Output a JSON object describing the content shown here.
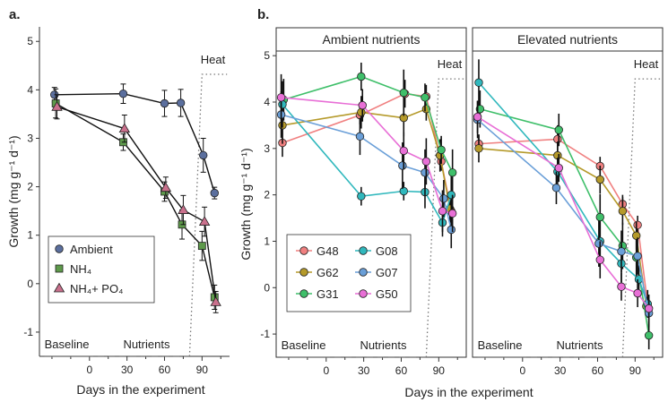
{
  "figure": {
    "x_axis_title": "Days in the experiment"
  },
  "chart_data": [
    {
      "type": "line",
      "panel_label": "a.",
      "ylabel": "Growth (mg g⁻¹ d⁻¹)",
      "xlabel": "Days in the experiment",
      "xlim": [
        -40,
        112
      ],
      "ylim": [
        -1.5,
        5.3
      ],
      "x_ticks": [
        0,
        30,
        60,
        90
      ],
      "y_ticks": [
        -1,
        0,
        1,
        2,
        3,
        4,
        5
      ],
      "grid": false,
      "legend_position": "bottom-left",
      "series": [
        {
          "name": "Ambient",
          "marker": "circle",
          "color": "#5b6f9e",
          "x": [
            -28,
            27,
            60,
            73,
            91,
            100
          ],
          "y": [
            3.9,
            3.92,
            3.72,
            3.73,
            2.65,
            1.87
          ],
          "err": [
            0.15,
            0.2,
            0.27,
            0.28,
            0.35,
            0.12
          ]
        },
        {
          "name": "NH₄",
          "marker": "square",
          "color": "#5e9a4b",
          "x": [
            -27,
            27,
            60,
            74,
            90,
            100
          ],
          "y": [
            3.72,
            2.92,
            1.9,
            1.22,
            0.78,
            -0.28
          ],
          "err": [
            0.3,
            0.17,
            0.2,
            0.3,
            0.3,
            0.25
          ]
        },
        {
          "name": "NH₄+ PO₄",
          "marker": "triangle",
          "color": "#c9708c",
          "x": [
            -26,
            28,
            61,
            75,
            92,
            101
          ],
          "y": [
            3.65,
            3.2,
            1.98,
            1.52,
            1.28,
            -0.38
          ],
          "err": [
            0.25,
            0.28,
            0.22,
            0.3,
            0.3,
            0.22
          ]
        }
      ],
      "annotations": {
        "heat_label": "Heat",
        "baseline_label": "Baseline",
        "nutrients_label": "Nutrients",
        "heat_step_x": [
          80,
          90,
          110
        ],
        "heat_step_y": [
          -1.5,
          4.32
        ],
        "baseline_segment": [
          -36,
          -2
        ],
        "nutrients_segment": [
          -2,
          80
        ]
      }
    },
    {
      "type": "line",
      "panel_label": "b.",
      "ylabel": "Growth (mg g⁻¹ d⁻¹)",
      "xlabel": "Days in the experiment",
      "xlim": [
        -40,
        112
      ],
      "ylim": [
        -1.5,
        5.1
      ],
      "x_ticks": [
        0,
        30,
        60,
        90
      ],
      "y_ticks": [
        -1,
        0,
        1,
        2,
        3,
        4,
        5
      ],
      "grid": false,
      "legend_position": "bottom-left",
      "legend_columns": 2,
      "legend_order": [
        "G48",
        "G08",
        "G62",
        "G07",
        "G31",
        "G50"
      ],
      "marker": "circle",
      "facets": [
        {
          "title": "Ambient nutrients",
          "series": [
            {
              "name": "G48",
              "color": "#f08080",
              "x": [
                -35,
                27,
                63,
                80,
                92,
                100
              ],
              "y": [
                3.12,
                3.72,
                4.18,
                4.12,
                2.72,
                1.65
              ],
              "err": [
                0.3,
                0.2,
                0.3,
                0.25,
                0.2,
                0.3
              ]
            },
            {
              "name": "G62",
              "color": "#b59a2a",
              "x": [
                -35,
                28,
                62,
                80,
                91,
                99
              ],
              "y": [
                3.5,
                3.78,
                3.66,
                3.85,
                2.85,
                1.7
              ],
              "err": [
                0.4,
                0.35,
                0.4,
                0.25,
                0.35,
                0.3
              ]
            },
            {
              "name": "G31",
              "color": "#3fbf6a",
              "x": [
                -34,
                28,
                62,
                79,
                92,
                101
              ],
              "y": [
                4.05,
                4.55,
                4.2,
                4.1,
                2.97,
                2.48
              ],
              "err": [
                0.45,
                0.3,
                0.5,
                0.3,
                0.3,
                0.5
              ]
            },
            {
              "name": "G08",
              "color": "#30b8bd",
              "x": [
                -35,
                28,
                62,
                79,
                93,
                100
              ],
              "y": [
                3.95,
                1.97,
                2.08,
                2.06,
                1.4,
                2.0
              ],
              "err": [
                0.5,
                0.2,
                0.2,
                0.35,
                0.3,
                0.4
              ]
            },
            {
              "name": "G07",
              "color": "#6a9fd8",
              "x": [
                -36,
                27,
                61,
                79,
                94,
                100
              ],
              "y": [
                3.73,
                3.26,
                2.63,
                2.48,
                1.92,
                1.25
              ],
              "err": [
                0.5,
                0.4,
                0.5,
                0.5,
                0.4,
                0.4
              ]
            },
            {
              "name": "G50",
              "color": "#e86fd6",
              "x": [
                -36,
                29,
                62,
                80,
                93,
                101
              ],
              "y": [
                4.1,
                3.93,
                2.95,
                2.72,
                1.65,
                1.6
              ],
              "err": [
                0.5,
                0.35,
                0.4,
                0.5,
                0.45,
                0.4
              ]
            }
          ],
          "annotations": {
            "heat_label": "Heat",
            "baseline_label": "Baseline",
            "nutrients_label": "Nutrients"
          }
        },
        {
          "title": "Elevated nutrients",
          "series": [
            {
              "name": "G48",
              "color": "#f08080",
              "x": [
                -35,
                28,
                62,
                80,
                92,
                100
              ],
              "y": [
                3.1,
                3.2,
                2.62,
                1.8,
                1.35,
                -0.35
              ],
              "err": [
                0.2,
                0.3,
                0.2,
                0.2,
                0.2,
                0.2
              ]
            },
            {
              "name": "G62",
              "color": "#b59a2a",
              "x": [
                -35,
                28,
                62,
                80,
                91,
                99
              ],
              "y": [
                3.0,
                2.85,
                2.33,
                1.65,
                1.12,
                -0.4
              ],
              "err": [
                0.3,
                0.3,
                0.3,
                0.3,
                0.3,
                0.2
              ]
            },
            {
              "name": "G31",
              "color": "#3fbf6a",
              "x": [
                -34,
                29,
                62,
                80,
                91,
                101
              ],
              "y": [
                3.85,
                3.4,
                1.52,
                0.9,
                0.65,
                -1.03
              ],
              "err": [
                0.4,
                0.35,
                0.5,
                0.5,
                0.4,
                0.3
              ]
            },
            {
              "name": "G08",
              "color": "#30b8bd",
              "x": [
                -35,
                28,
                62,
                79,
                93,
                100
              ],
              "y": [
                4.42,
                2.5,
                1.0,
                0.52,
                0.18,
                -0.35
              ],
              "err": [
                0.5,
                0.3,
                0.4,
                0.4,
                0.3,
                0.3
              ]
            },
            {
              "name": "G07",
              "color": "#6a9fd8",
              "x": [
                -36,
                27,
                61,
                79,
                92,
                101
              ],
              "y": [
                3.62,
                2.15,
                0.95,
                0.78,
                0.68,
                -0.55
              ],
              "err": [
                0.4,
                0.35,
                0.5,
                0.45,
                0.4,
                0.3
              ]
            },
            {
              "name": "G50",
              "color": "#e86fd6",
              "x": [
                -36,
                29,
                62,
                79,
                92,
                101
              ],
              "y": [
                3.68,
                2.58,
                0.6,
                0.02,
                -0.12,
                -0.45
              ],
              "err": [
                0.35,
                0.3,
                0.4,
                0.3,
                0.3,
                0.3
              ]
            }
          ],
          "annotations": {
            "heat_label": "Heat",
            "baseline_label": "Baseline",
            "nutrients_label": "Nutrients"
          }
        }
      ]
    }
  ]
}
